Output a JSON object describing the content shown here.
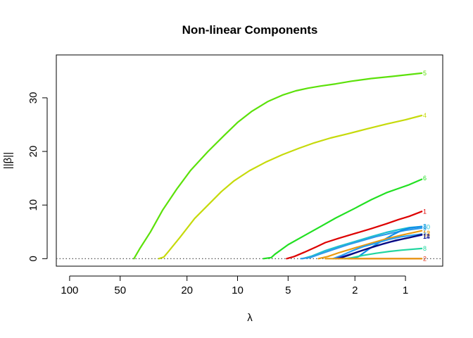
{
  "chart_data": {
    "type": "line",
    "title": "Non-linear Components",
    "xlabel": "λ",
    "ylabel": "||β||",
    "x_scale": "log",
    "x_reversed": true,
    "xlim": [
      120,
      0.6
    ],
    "ylim": [
      -1.4,
      38
    ],
    "x_ticks": [
      100,
      50,
      20,
      10,
      5,
      2,
      1
    ],
    "x_tick_labels": [
      "100",
      "50",
      "20",
      "10",
      "5",
      "2",
      "1"
    ],
    "y_ticks": [
      0,
      10,
      20,
      30
    ],
    "y_tick_labels": [
      "0",
      "10",
      "20",
      "30"
    ],
    "reference_line": {
      "y": 0,
      "style": "dotted",
      "color": "#555555"
    },
    "grid": false,
    "legend": "none",
    "series": [
      {
        "label": "5",
        "color": "#5ce10a",
        "points": [
          [
            41.4,
            0
          ],
          [
            38,
            2
          ],
          [
            33,
            5
          ],
          [
            28,
            9
          ],
          [
            23,
            13
          ],
          [
            19,
            16.5
          ],
          [
            15,
            20
          ],
          [
            12,
            23
          ],
          [
            10,
            25.4
          ],
          [
            8.2,
            27.5
          ],
          [
            6.6,
            29.3
          ],
          [
            5.4,
            30.5
          ],
          [
            4.5,
            31.3
          ],
          [
            3.8,
            31.8
          ],
          [
            3.2,
            32.2
          ],
          [
            2.6,
            32.6
          ],
          [
            2.1,
            33.1
          ],
          [
            1.6,
            33.6
          ],
          [
            1.2,
            34
          ],
          [
            0.8,
            34.6
          ]
        ]
      },
      {
        "label": "4",
        "color": "#c6da0b",
        "points": [
          [
            29.4,
            0
          ],
          [
            27.5,
            0.3
          ],
          [
            26,
            1.2
          ],
          [
            22,
            4
          ],
          [
            18,
            7.5
          ],
          [
            15,
            10
          ],
          [
            12.5,
            12.5
          ],
          [
            10.5,
            14.5
          ],
          [
            8.5,
            16.4
          ],
          [
            6.8,
            18
          ],
          [
            5.4,
            19.4
          ],
          [
            4.3,
            20.6
          ],
          [
            3.5,
            21.6
          ],
          [
            2.8,
            22.5
          ],
          [
            2.2,
            23.3
          ],
          [
            1.7,
            24.2
          ],
          [
            1.3,
            25.1
          ],
          [
            1.0,
            25.9
          ],
          [
            0.8,
            26.7
          ]
        ]
      },
      {
        "label": "6",
        "color": "#22e022",
        "points": [
          [
            7.0,
            0
          ],
          [
            6.3,
            0.2
          ],
          [
            6.0,
            0.8
          ],
          [
            5.0,
            2.6
          ],
          [
            4.0,
            4.3
          ],
          [
            3.2,
            6.0
          ],
          [
            2.6,
            7.6
          ],
          [
            2.0,
            9.4
          ],
          [
            1.6,
            11.0
          ],
          [
            1.3,
            12.3
          ],
          [
            1.1,
            13.1
          ],
          [
            0.95,
            13.8
          ],
          [
            0.8,
            14.8
          ]
        ]
      },
      {
        "label": "1",
        "color": "#dd0000",
        "points": [
          [
            5.1,
            0
          ],
          [
            4.6,
            0.4
          ],
          [
            4.0,
            1.2
          ],
          [
            3.4,
            2.2
          ],
          [
            3.0,
            3.0
          ],
          [
            2.5,
            3.8
          ],
          [
            2.0,
            4.7
          ],
          [
            1.6,
            5.6
          ],
          [
            1.3,
            6.5
          ],
          [
            1.1,
            7.3
          ],
          [
            0.95,
            7.9
          ],
          [
            0.8,
            8.8
          ]
        ]
      },
      {
        "label": "10",
        "color": "#1ec1cf",
        "points": [
          [
            4.1,
            0
          ],
          [
            3.6,
            0.5
          ],
          [
            3.0,
            1.5
          ],
          [
            2.5,
            2.3
          ],
          [
            2.0,
            3.2
          ],
          [
            1.6,
            4.1
          ],
          [
            1.3,
            4.9
          ],
          [
            1.1,
            5.4
          ],
          [
            0.95,
            5.8
          ],
          [
            0.8,
            6.0
          ]
        ]
      },
      {
        "label": "9",
        "color": "#2f9ae8",
        "points": [
          [
            4.2,
            0
          ],
          [
            3.7,
            0.2
          ],
          [
            3.2,
            0.9
          ],
          [
            2.7,
            1.7
          ],
          [
            2.2,
            2.6
          ],
          [
            1.8,
            3.4
          ],
          [
            1.5,
            4.1
          ],
          [
            1.2,
            4.8
          ],
          [
            1.0,
            5.3
          ],
          [
            0.8,
            5.7
          ]
        ]
      },
      {
        "label": "3",
        "color": "#0f8ee8",
        "points": [
          [
            2.1,
            0
          ],
          [
            1.9,
            0.4
          ],
          [
            1.65,
            1.8
          ],
          [
            1.4,
            3.2
          ],
          [
            1.2,
            4.4
          ],
          [
            1.05,
            5.3
          ],
          [
            0.95,
            5.7
          ],
          [
            0.8,
            6.0
          ]
        ]
      },
      {
        "label": "12",
        "color": "#e89a10",
        "points": [
          [
            3.3,
            0
          ],
          [
            2.9,
            0.4
          ],
          [
            2.5,
            1.1
          ],
          [
            2.0,
            2.0
          ],
          [
            1.6,
            2.9
          ],
          [
            1.3,
            3.7
          ],
          [
            1.05,
            4.4
          ],
          [
            0.8,
            5.2
          ]
        ]
      },
      {
        "label": "7",
        "color": "#2a9ff0",
        "points": [
          [
            2.7,
            0
          ],
          [
            2.4,
            0.6
          ],
          [
            2.1,
            1.4
          ],
          [
            1.8,
            2.2
          ],
          [
            1.5,
            2.9
          ],
          [
            1.25,
            3.6
          ],
          [
            1.05,
            4.1
          ],
          [
            0.8,
            4.6
          ]
        ]
      },
      {
        "label": "11",
        "color": "#1b2fd8",
        "points": [
          [
            2.6,
            0
          ],
          [
            2.3,
            0.5
          ],
          [
            2.0,
            1.1
          ],
          [
            1.7,
            1.8
          ],
          [
            1.4,
            2.6
          ],
          [
            1.2,
            3.2
          ],
          [
            1.0,
            3.8
          ],
          [
            0.8,
            4.4
          ]
        ]
      },
      {
        "label": "14",
        "color": "#0a0a7a",
        "points": [
          [
            2.5,
            0
          ],
          [
            2.2,
            0.6
          ],
          [
            1.9,
            1.3
          ],
          [
            1.6,
            2.1
          ],
          [
            1.35,
            2.8
          ],
          [
            1.15,
            3.4
          ],
          [
            0.95,
            3.9
          ],
          [
            0.8,
            4.5
          ]
        ]
      },
      {
        "label": "8",
        "color": "#22d6a0",
        "points": [
          [
            2.3,
            0
          ],
          [
            2.1,
            0.15
          ],
          [
            1.8,
            0.6
          ],
          [
            1.5,
            1.0
          ],
          [
            1.25,
            1.35
          ],
          [
            1.05,
            1.6
          ],
          [
            0.8,
            1.9
          ]
        ]
      },
      {
        "label": "2",
        "color": "#e03018",
        "points": [
          [
            2.2,
            0
          ],
          [
            1.5,
            0
          ],
          [
            1.0,
            0
          ],
          [
            0.8,
            0
          ]
        ]
      },
      {
        "label": "13",
        "color": "#e89a10",
        "points": [
          [
            3.0,
            0
          ],
          [
            2.4,
            0
          ],
          [
            0.8,
            0
          ]
        ]
      }
    ],
    "end_labels": [
      {
        "text": "5",
        "y": 34.6,
        "color": "#5ce10a"
      },
      {
        "text": "4",
        "y": 26.7,
        "color": "#c6da0b"
      },
      {
        "text": "6",
        "y": 15.0,
        "color": "#22e022"
      },
      {
        "text": "1",
        "y": 8.8,
        "color": "#dd0000"
      },
      {
        "text": "10",
        "y": 5.9,
        "color": "#1ec1cf"
      },
      {
        "text": "9",
        "y": 5.6,
        "color": "#2f9ae8"
      },
      {
        "text": "3",
        "y": 6.0,
        "color": "#0f8ee8"
      },
      {
        "text": "12",
        "y": 4.8,
        "color": "#e89a10"
      },
      {
        "text": "13",
        "y": 4.6,
        "color": "#e89a10"
      },
      {
        "text": "7",
        "y": 4.4,
        "color": "#2a9ff0"
      },
      {
        "text": "11",
        "y": 4.2,
        "color": "#1b2fd8"
      },
      {
        "text": "14",
        "y": 4.1,
        "color": "#0a0a7a"
      },
      {
        "text": "8",
        "y": 1.9,
        "color": "#22d6a0"
      },
      {
        "text": "2",
        "y": 0.0,
        "color": "#e03018"
      }
    ]
  }
}
